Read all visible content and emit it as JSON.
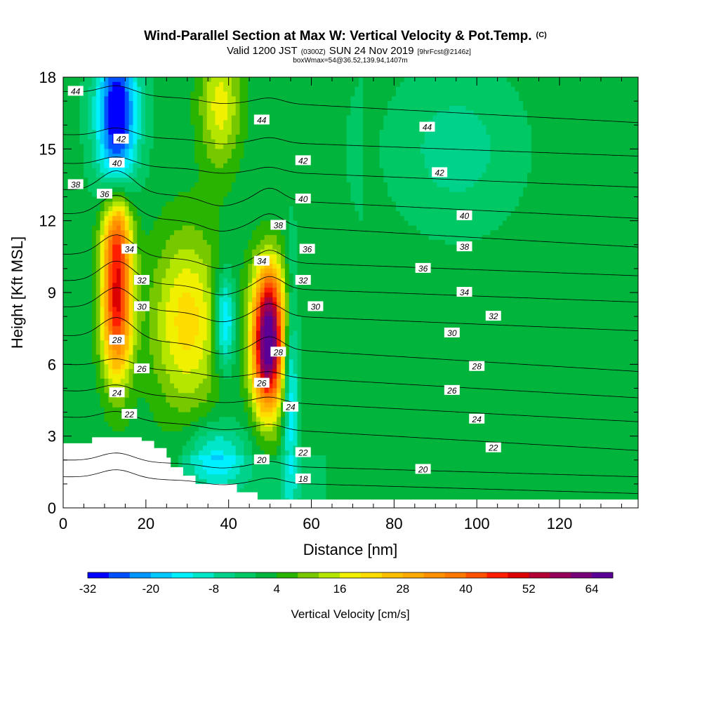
{
  "chart_data": {
    "type": "heatmap",
    "title": "Wind-Parallel Section at Max W: Vertical Velocity & Pot.Temp.",
    "title_mark": "(C)",
    "subtitle": {
      "valid_prefix": "Valid 1200 JST",
      "utc": "(0300Z)",
      "date": "SUN 24 Nov 2019",
      "forecast": "[9hrFcst@2146z]"
    },
    "subtitle2": "boxWmax=54@36.52,139.94,1407m",
    "xlabel": "Distance [nm]",
    "ylabel": "Height [Kft MSL]",
    "xlim": [
      0,
      139
    ],
    "ylim": [
      0,
      18
    ],
    "x_ticks": [
      0,
      20,
      40,
      60,
      80,
      100,
      120
    ],
    "y_ticks": [
      0,
      3,
      6,
      9,
      12,
      15,
      18
    ],
    "colorbar": {
      "label": "Vertical Velocity [cm/s]",
      "levels": [
        -32,
        -28,
        -24,
        -20,
        -16,
        -12,
        -8,
        -4,
        0,
        4,
        8,
        12,
        16,
        20,
        24,
        28,
        32,
        36,
        40,
        44,
        48,
        52,
        56,
        60,
        64,
        68
      ],
      "tick_labels": [
        -32,
        -20,
        -8,
        4,
        16,
        28,
        40,
        52,
        64
      ],
      "colors": [
        "#0000ff",
        "#0050ff",
        "#0096ff",
        "#00c8ff",
        "#00f0ff",
        "#00e6c8",
        "#00d28c",
        "#00c864",
        "#00b43c",
        "#28b400",
        "#78c800",
        "#b4e600",
        "#f0f000",
        "#ffdc00",
        "#ffbe00",
        "#ffaa00",
        "#ff9100",
        "#ff7800",
        "#ff5000",
        "#ff1e00",
        "#dc0000",
        "#b40032",
        "#96005a",
        "#780078",
        "#5a0096"
      ]
    },
    "velocity_features": [
      {
        "kind": "updraft",
        "x": 13,
        "y": 8.5,
        "peak": 48,
        "sx": 2.6,
        "sy": 2.2
      },
      {
        "kind": "updraft",
        "x": 13,
        "y": 11.5,
        "peak": 24,
        "sx": 2.5,
        "sy": 1.2
      },
      {
        "kind": "updraft",
        "x": 30,
        "y": 7.8,
        "peak": 22,
        "sx": 6,
        "sy": 2.6
      },
      {
        "kind": "updraft",
        "x": 38,
        "y": 16.8,
        "peak": 18,
        "sx": 3.5,
        "sy": 1.8
      },
      {
        "kind": "updraft",
        "x": 49.5,
        "y": 6.5,
        "peak": 64,
        "sx": 2.6,
        "sy": 1.8
      },
      {
        "kind": "updraft",
        "x": 50,
        "y": 8.8,
        "peak": 24,
        "sx": 3,
        "sy": 1.5
      },
      {
        "kind": "downdraft",
        "x": 13,
        "y": 16.5,
        "peak": -34,
        "sx": 3.5,
        "sy": 2.2
      },
      {
        "kind": "downdraft",
        "x": 39,
        "y": 7.8,
        "peak": -22,
        "sx": 1.8,
        "sy": 1.4
      },
      {
        "kind": "downdraft",
        "x": 55,
        "y": 5,
        "peak": -16,
        "sx": 1.3,
        "sy": 3.5
      },
      {
        "kind": "downdraft",
        "x": 37,
        "y": 2.2,
        "peak": -14,
        "sx": 5,
        "sy": 0.9
      },
      {
        "kind": "downdraft",
        "x": 95,
        "y": 15,
        "peak": -8,
        "sx": 14,
        "sy": 3
      }
    ],
    "isentropes": [
      {
        "value": 18,
        "y_left": 1.3,
        "y_right": 0.6
      },
      {
        "value": 20,
        "y_left": 2.0,
        "y_right": 1.3
      },
      {
        "value": 22,
        "y_left": 3.8,
        "y_right": 2.4
      },
      {
        "value": 24,
        "y_left": 4.9,
        "y_right": 3.6
      },
      {
        "value": 26,
        "y_left": 6.0,
        "y_right": 4.6
      },
      {
        "value": 28,
        "y_left": 7.2,
        "y_right": 5.7
      },
      {
        "value": 30,
        "y_left": 8.4,
        "y_right": 7.4
      },
      {
        "value": 32,
        "y_left": 9.5,
        "y_right": 8.6
      },
      {
        "value": 34,
        "y_left": 10.6,
        "y_right": 9.7
      },
      {
        "value": 36,
        "y_left": 12.3,
        "y_right": 10.9
      },
      {
        "value": 38,
        "y_left": 13.3,
        "y_right": 12.1
      },
      {
        "value": 40,
        "y_left": 14.4,
        "y_right": 13.4
      },
      {
        "value": 42,
        "y_left": 15.6,
        "y_right": 14.7
      },
      {
        "value": 44,
        "y_left": 17.4,
        "y_right": 16.1
      }
    ],
    "contour_labels": [
      {
        "text": "44",
        "x": 3,
        "y": 17.4
      },
      {
        "text": "44",
        "x": 48,
        "y": 16.2
      },
      {
        "text": "44",
        "x": 88,
        "y": 15.9
      },
      {
        "text": "42",
        "x": 14,
        "y": 15.4
      },
      {
        "text": "42",
        "x": 58,
        "y": 14.5
      },
      {
        "text": "42",
        "x": 91,
        "y": 14.0
      },
      {
        "text": "40",
        "x": 13,
        "y": 14.4
      },
      {
        "text": "40",
        "x": 58,
        "y": 12.9
      },
      {
        "text": "40",
        "x": 97,
        "y": 12.2
      },
      {
        "text": "38",
        "x": 3,
        "y": 13.5
      },
      {
        "text": "38",
        "x": 52,
        "y": 11.8
      },
      {
        "text": "38",
        "x": 97,
        "y": 10.9
      },
      {
        "text": "36",
        "x": 10,
        "y": 13.1
      },
      {
        "text": "36",
        "x": 59,
        "y": 10.8
      },
      {
        "text": "36",
        "x": 87,
        "y": 10.0
      },
      {
        "text": "34",
        "x": 16,
        "y": 10.8
      },
      {
        "text": "34",
        "x": 48,
        "y": 10.3
      },
      {
        "text": "34",
        "x": 97,
        "y": 9.0
      },
      {
        "text": "32",
        "x": 19,
        "y": 9.5
      },
      {
        "text": "32",
        "x": 58,
        "y": 9.5
      },
      {
        "text": "32",
        "x": 104,
        "y": 8.0
      },
      {
        "text": "30",
        "x": 19,
        "y": 8.4
      },
      {
        "text": "30",
        "x": 61,
        "y": 8.4
      },
      {
        "text": "30",
        "x": 94,
        "y": 7.3
      },
      {
        "text": "28",
        "x": 13,
        "y": 7.0
      },
      {
        "text": "28",
        "x": 52,
        "y": 6.5
      },
      {
        "text": "28",
        "x": 100,
        "y": 5.9
      },
      {
        "text": "26",
        "x": 19,
        "y": 5.8
      },
      {
        "text": "26",
        "x": 48,
        "y": 5.2
      },
      {
        "text": "26",
        "x": 94,
        "y": 4.9
      },
      {
        "text": "24",
        "x": 13,
        "y": 4.8
      },
      {
        "text": "24",
        "x": 55,
        "y": 4.2
      },
      {
        "text": "24",
        "x": 100,
        "y": 3.7
      },
      {
        "text": "22",
        "x": 16,
        "y": 3.9
      },
      {
        "text": "22",
        "x": 58,
        "y": 2.3
      },
      {
        "text": "22",
        "x": 104,
        "y": 2.5
      },
      {
        "text": "20",
        "x": 48,
        "y": 2.0
      },
      {
        "text": "20",
        "x": 87,
        "y": 1.6
      },
      {
        "text": "18",
        "x": 58,
        "y": 1.2
      }
    ],
    "terrain": [
      [
        0,
        2.7
      ],
      [
        7,
        2.7
      ],
      [
        7,
        2.95
      ],
      [
        19,
        2.95
      ],
      [
        19,
        2.8
      ],
      [
        22,
        2.8
      ],
      [
        22,
        2.5
      ],
      [
        25,
        2.5
      ],
      [
        25,
        2.1
      ],
      [
        26,
        2.1
      ],
      [
        26,
        1.7
      ],
      [
        29,
        1.7
      ],
      [
        29,
        1.35
      ],
      [
        32,
        1.35
      ],
      [
        32,
        1.0
      ],
      [
        42,
        1.0
      ],
      [
        42,
        0.65
      ],
      [
        47,
        0.65
      ],
      [
        47,
        0.35
      ],
      [
        139,
        0.35
      ]
    ],
    "grid": false
  }
}
